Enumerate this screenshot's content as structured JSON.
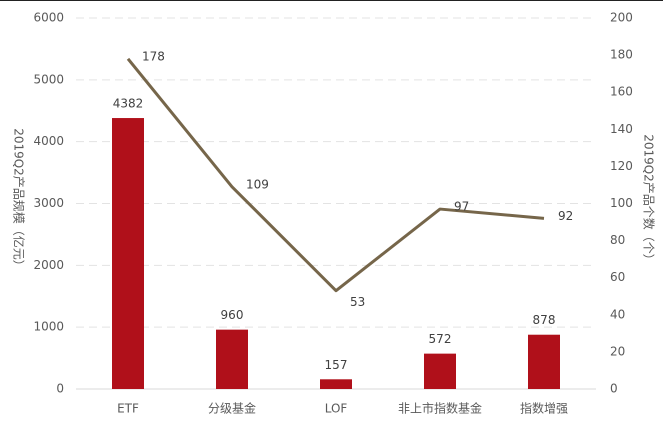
{
  "chart_data": {
    "type": "bar",
    "categories": [
      "ETF",
      "分级基金",
      "LOF",
      "非上市指数基金",
      "指数增强"
    ],
    "series": [
      {
        "type": "bar",
        "color": "#b0101a",
        "values": [
          4382,
          960,
          157,
          572,
          878
        ]
      },
      {
        "type": "line",
        "axis": "y2",
        "color": "#76664a",
        "values": [
          178,
          109,
          53,
          97,
          92
        ]
      }
    ],
    "ylabel": "2019Q2产品规模（亿元）",
    "y2label": "2019Q2产品个数（个）",
    "ylim": [
      0,
      6000
    ],
    "yticks": [
      0,
      1000,
      2000,
      3000,
      4000,
      5000,
      6000
    ],
    "y2lim": [
      0,
      200
    ],
    "y2ticks": [
      0,
      20,
      40,
      60,
      80,
      100,
      120,
      140,
      160,
      180,
      200
    ],
    "grid": true
  }
}
